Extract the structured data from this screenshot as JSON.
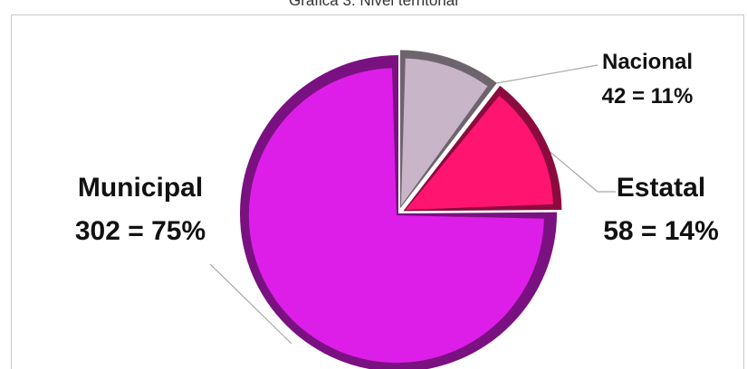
{
  "chart_data": {
    "type": "pie",
    "title": "Gráfica 3. Nivel territorial",
    "slices": [
      {
        "name": "Nacional",
        "value": 42,
        "percent": "11%",
        "color": "#c8b6c8"
      },
      {
        "name": "Estatal",
        "value": 58,
        "percent": "14%",
        "color": "#ff1470"
      },
      {
        "name": "Municipal",
        "value": 302,
        "percent": "75%",
        "color": "#dd1ee8"
      }
    ],
    "labels": {
      "nacional": {
        "name": "Nacional",
        "value_text": "42 = 11%"
      },
      "estatal": {
        "name": "Estatal",
        "value_text": "58 = 14%"
      },
      "municipal": {
        "name": "Municipal",
        "value_text": "302 = 75%"
      }
    },
    "legend": "none"
  }
}
